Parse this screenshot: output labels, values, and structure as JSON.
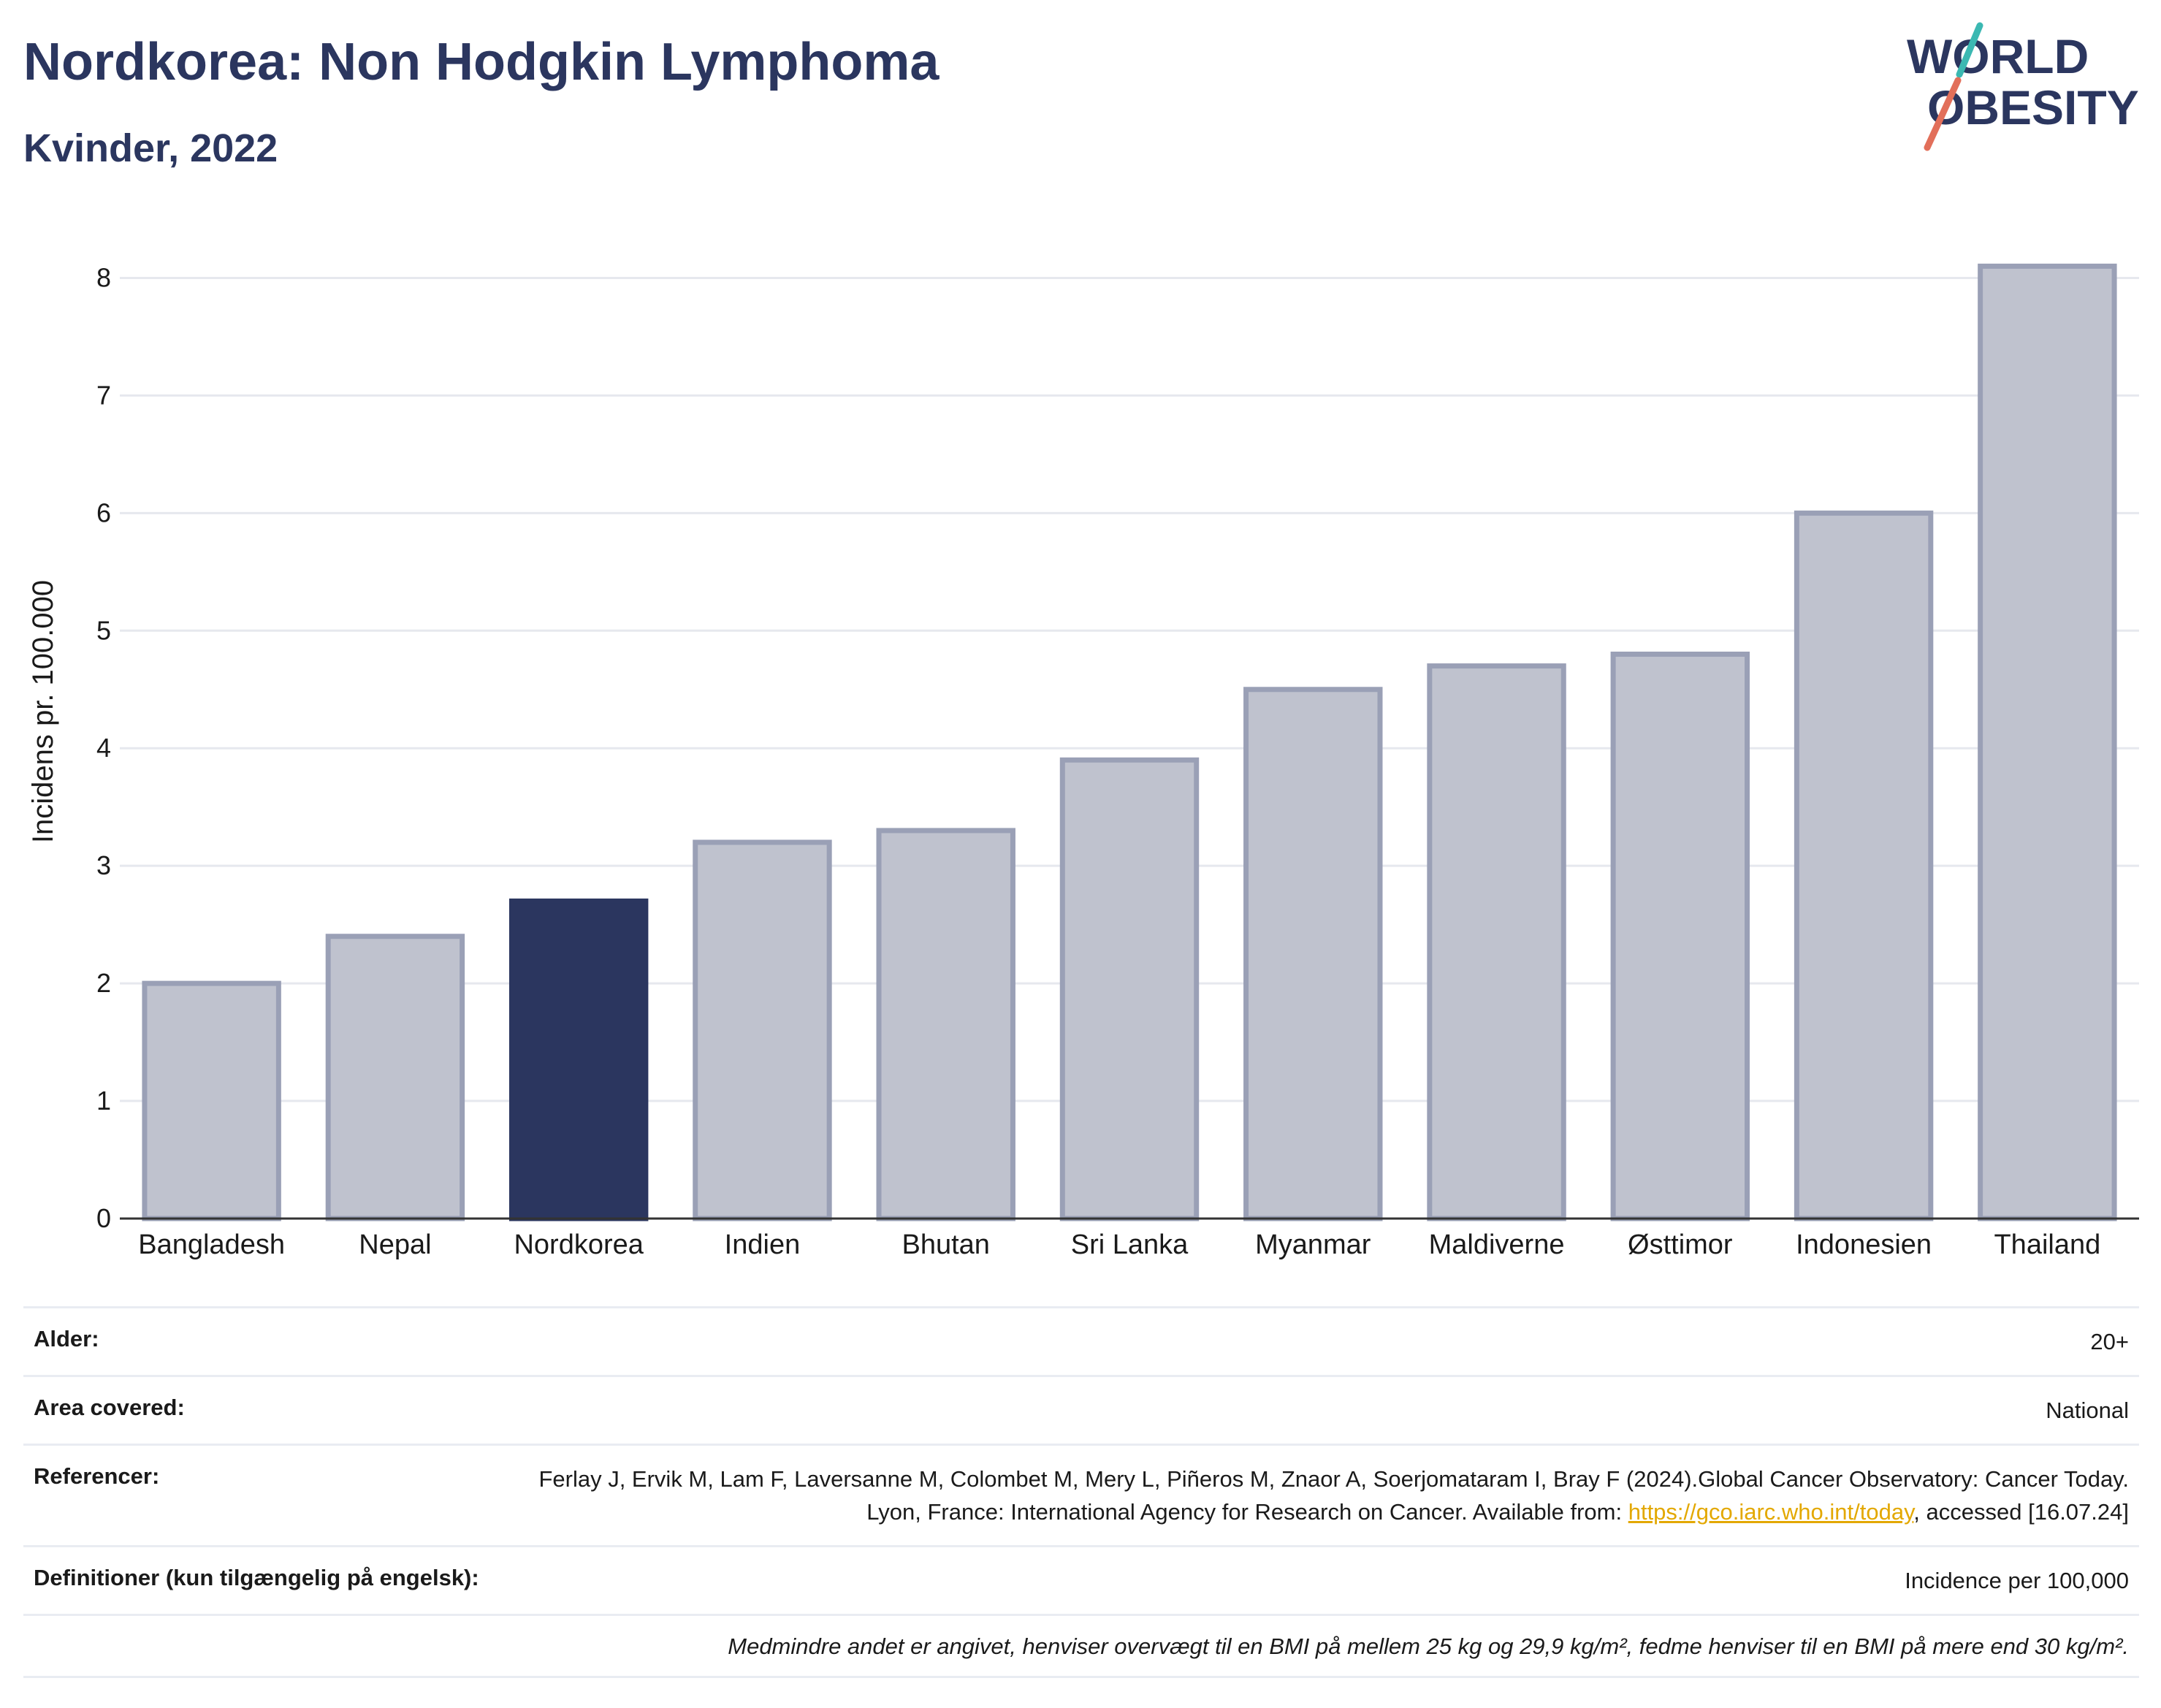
{
  "title": "Nordkorea: Non Hodgkin Lymphoma",
  "subtitle": "Kvinder, 2022",
  "logo": {
    "line1": "WORLD",
    "line2": "OBESITY",
    "colors": {
      "text": "#2b365f",
      "slash_top": "#3bb8b2",
      "slash_bottom": "#e26f5a"
    }
  },
  "colors": {
    "highlight": "#2b365f",
    "bar": "#bfc2ce",
    "bar_border": "#9aa0b6",
    "grid": "#e6e8ee",
    "axis": "#333333",
    "link": "#e3a800"
  },
  "chart_data": {
    "type": "bar",
    "title": "Nordkorea: Non Hodgkin Lymphoma",
    "subtitle": "Kvinder, 2022",
    "xlabel": "",
    "ylabel": "Incidens pr. 100.000",
    "ylim": [
      0,
      8.5
    ],
    "yticks": [
      0,
      1,
      2,
      3,
      4,
      5,
      6,
      7,
      8
    ],
    "grid": true,
    "highlight": "Nordkorea",
    "categories": [
      "Bangladesh",
      "Nepal",
      "Nordkorea",
      "Indien",
      "Bhutan",
      "Sri Lanka",
      "Myanmar",
      "Maldiverne",
      "Østtimor",
      "Indonesien",
      "Thailand"
    ],
    "values": [
      2.0,
      2.4,
      2.7,
      3.2,
      3.3,
      3.9,
      4.5,
      4.7,
      4.8,
      6.0,
      8.1
    ]
  },
  "info": {
    "age_label": "Alder:",
    "age_value": "20+",
    "area_label": "Area covered:",
    "area_value": "National",
    "ref_label": "Referencer:",
    "ref_text_1": "Ferlay J, Ervik M, Lam F, Laversanne M, Colombet M, Mery L, Piñeros M, Znaor A, Soerjomataram I, Bray F (2024).Global Cancer Observatory: Cancer Today. Lyon, France: International Agency for Research on Cancer. Available from: ",
    "ref_link": "https://gco.iarc.who.int/today",
    "ref_text_2": ", accessed [16.07.24]",
    "def_label": "Definitioner (kun tilgængelig på engelsk):",
    "def_value": "Incidence per 100,000",
    "note": "Medmindre andet er angivet, henviser overvægt til en BMI på mellem 25 kg og 29,9 kg/m², fedme henviser til en BMI på mere end 30 kg/m²."
  }
}
